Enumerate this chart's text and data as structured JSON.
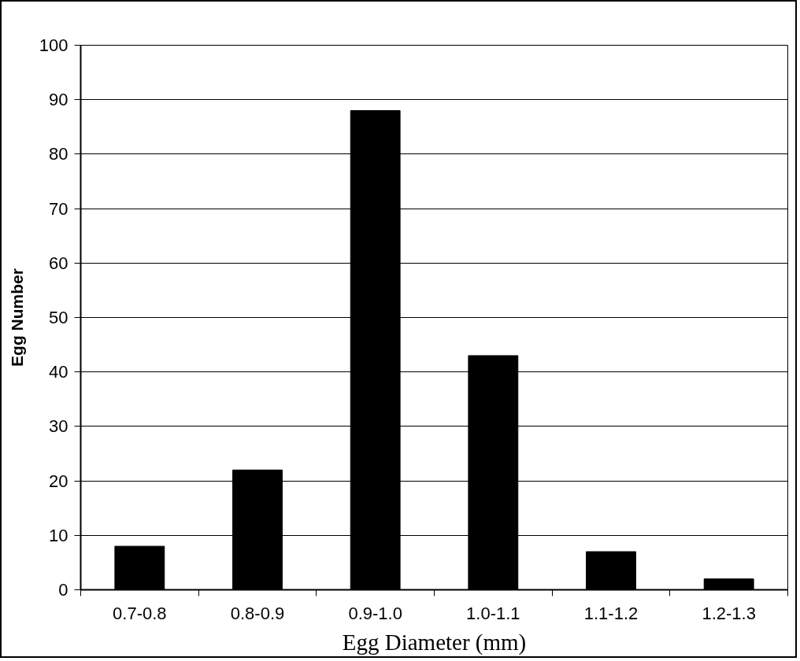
{
  "chart_data": {
    "type": "bar",
    "xlabel": "Egg Diameter (mm)",
    "ylabel": "Egg Number",
    "categories": [
      "0.7-0.8",
      "0.8-0.9",
      "0.9-1.0",
      "1.0-1.1",
      "1.1-1.2",
      "1.2-1.3"
    ],
    "values": [
      8,
      22,
      88,
      43,
      7,
      2
    ],
    "color": "#000000",
    "ylim": [
      0,
      100
    ],
    "yticks": [
      0,
      10,
      20,
      30,
      40,
      50,
      60,
      70,
      80,
      90,
      100
    ],
    "grid": "y"
  }
}
